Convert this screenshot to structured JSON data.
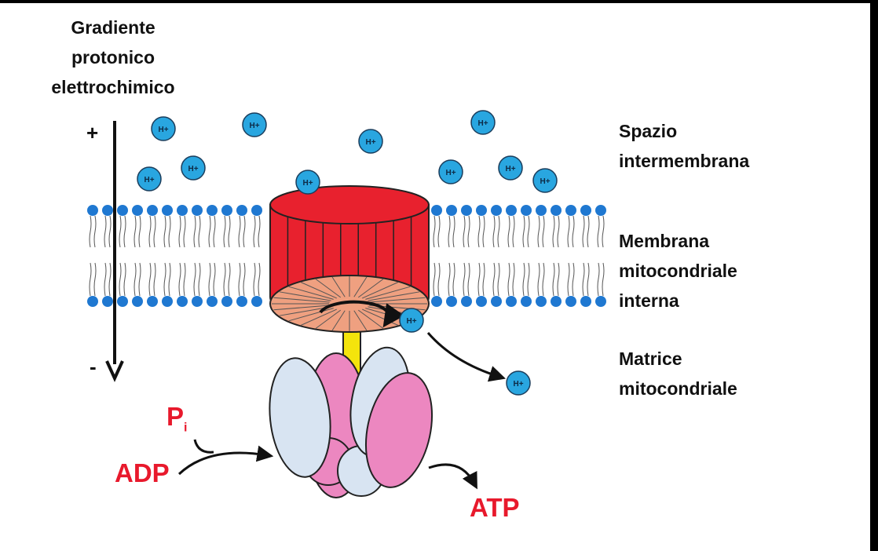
{
  "labels": {
    "gradient": [
      "Gradiente",
      "protonico",
      "elettrochimico"
    ],
    "intermembrane_space": [
      "Spazio",
      "intermembrana"
    ],
    "inner_membrane": [
      "Membrana",
      "mitocondriale",
      "interna"
    ],
    "matrix": [
      "Matrice",
      "mitocondriale"
    ],
    "plus_sign": "+",
    "minus_sign": "-"
  },
  "reaction": {
    "phosphate": "P",
    "phosphate_subscript": "i",
    "adp": "ADP",
    "atp": "ATP"
  },
  "proton_label": "H+",
  "colors": {
    "proton": "#29a6e0",
    "head_group": "#1f78d1",
    "rotor_red": "#e8212e",
    "rotor_base": "#efa080",
    "stalk": "#f4e40c",
    "subunit_pink": "#ec87c0",
    "subunit_blue": "#d8e4f2",
    "product_red": "#e8192c"
  }
}
